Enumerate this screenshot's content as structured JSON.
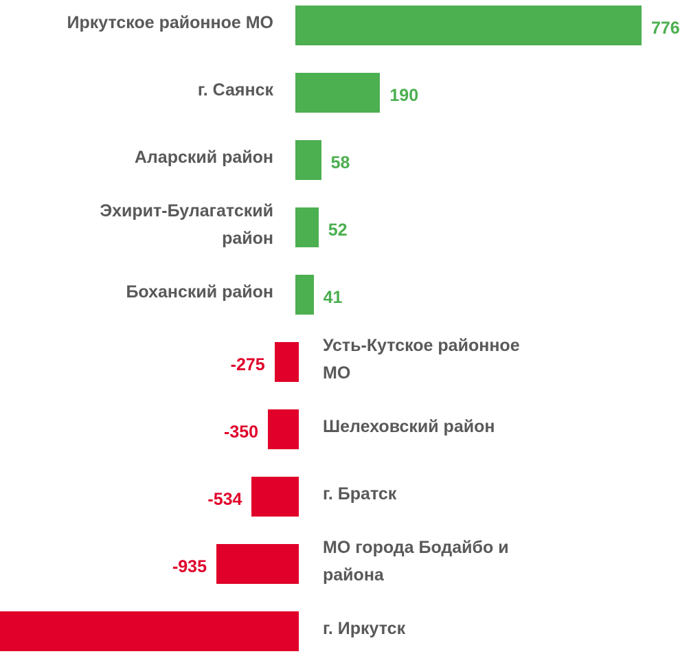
{
  "chart_data": {
    "type": "bar",
    "orientation": "horizontal",
    "categories": [
      "Иркутское районное МО",
      "г. Саянск",
      "Аларский район",
      "Эхирит-Булагатский\nрайон",
      "Боханский район",
      "Усть-Кутское районное\nМО",
      "Шелеховский район",
      "г. Братск",
      "МО города Бодайбо и\nрайона",
      "г. Иркутск"
    ],
    "values": [
      776,
      190,
      58,
      52,
      41,
      -275,
      -350,
      -534,
      -935,
      -3400
    ],
    "value_labels": [
      "776",
      "190",
      "58",
      "52",
      "41",
      "-275",
      "-350",
      "-534",
      "-935",
      null
    ],
    "positive_color": "#4caf50",
    "negative_color": "#e0002a",
    "label_color": "#595959"
  }
}
